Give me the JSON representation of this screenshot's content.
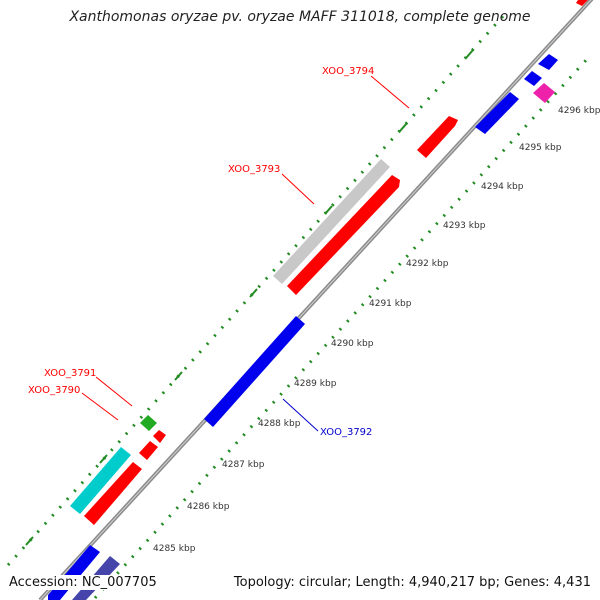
{
  "title": "Xanthomonas oryzae pv. oryzae MAFF 311018, complete genome",
  "footer": {
    "accession": "Accession: NC_007705",
    "topology": "Topology: circular; Length: 4,940,217 bp; Genes: 4,431"
  },
  "colors": {
    "axis": "#8c8c8c",
    "tick_marks": "#228b22",
    "label_red": "#ff0000",
    "label_blue": "#0000cc",
    "feature_red": "#ff0000",
    "feature_blue": "#0000ee",
    "feature_gray": "#c8c8c8",
    "feature_cyan": "#00cccc",
    "feature_green": "#22aa22",
    "feature_magenta": "#ee22aa",
    "feature_navy": "#4444aa"
  },
  "ticks": [
    "4285 kbp",
    "4286 kbp",
    "4287 kbp",
    "4288 kbp",
    "4289 kbp",
    "4290 kbp",
    "4291 kbp",
    "4292 kbp",
    "4293 kbp",
    "4294 kbp",
    "4295 kbp",
    "4296 kbp"
  ],
  "gene_labels": [
    {
      "name": "XOO_3794",
      "color": "red"
    },
    {
      "name": "XOO_3793",
      "color": "red"
    },
    {
      "name": "XOO_3791",
      "color": "red"
    },
    {
      "name": "XOO_3790",
      "color": "red"
    },
    {
      "name": "XOO_3792",
      "color": "blue"
    }
  ]
}
